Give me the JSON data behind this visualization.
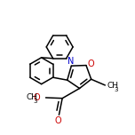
{
  "bg_color": "#ffffff",
  "line_color": "#000000",
  "atom_colors": {
    "N": "#0000cc",
    "O": "#cc0000"
  },
  "lw": 1.1,
  "fs": 6.5,
  "xlim": [
    -1.6,
    1.6
  ],
  "ylim": [
    -1.9,
    2.1
  ]
}
